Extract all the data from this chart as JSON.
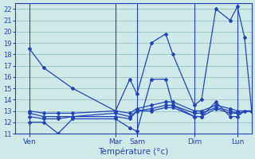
{
  "title": "Température (°c)",
  "background_color": "#cfe8e8",
  "grid_color": "#9ec8c8",
  "line_color": "#2244bb",
  "xlim": [
    0,
    33
  ],
  "ylim": [
    11,
    22.5
  ],
  "yticks": [
    11,
    12,
    13,
    14,
    15,
    16,
    17,
    18,
    19,
    20,
    21,
    22
  ],
  "x_tick_positions": [
    2,
    14,
    17,
    25,
    31
  ],
  "x_tick_labels": [
    "Ven",
    "Mar",
    "Sam",
    "Dim",
    "Lun"
  ],
  "x_vlines": [
    2,
    14,
    17,
    25,
    31
  ],
  "series": [
    {
      "x": [
        2,
        4,
        8,
        14,
        16,
        17,
        19,
        21,
        22,
        25,
        26,
        28,
        30,
        31,
        32,
        33
      ],
      "y": [
        18.5,
        16.8,
        15.0,
        13.0,
        15.8,
        14.5,
        19.0,
        19.8,
        18.0,
        13.5,
        14.0,
        22.0,
        21.0,
        22.2,
        19.5,
        13.0
      ]
    },
    {
      "x": [
        2,
        4,
        6,
        8,
        14,
        16,
        17,
        19,
        21,
        22,
        25,
        26,
        28,
        30,
        31,
        32,
        33
      ],
      "y": [
        12.0,
        12.0,
        11.0,
        12.3,
        12.3,
        11.5,
        11.2,
        15.8,
        15.8,
        13.5,
        12.5,
        12.5,
        13.8,
        12.5,
        12.5,
        13.0,
        13.0
      ]
    },
    {
      "x": [
        2,
        4,
        6,
        8,
        14,
        16,
        17,
        19,
        21,
        22,
        25,
        26,
        28,
        30,
        31,
        33
      ],
      "y": [
        12.5,
        12.3,
        12.3,
        12.5,
        12.5,
        12.3,
        13.0,
        13.0,
        13.3,
        13.3,
        12.5,
        12.5,
        13.2,
        12.8,
        12.8,
        13.0
      ]
    },
    {
      "x": [
        2,
        4,
        6,
        8,
        14,
        16,
        17,
        19,
        21,
        22,
        25,
        26,
        28,
        30,
        31,
        33
      ],
      "y": [
        12.8,
        12.5,
        12.5,
        12.5,
        12.8,
        12.5,
        13.0,
        13.2,
        13.5,
        13.5,
        12.8,
        12.8,
        13.3,
        13.0,
        12.8,
        13.0
      ]
    },
    {
      "x": [
        2,
        4,
        6,
        8,
        14,
        16,
        17,
        19,
        21,
        22,
        25,
        26,
        28,
        30,
        31,
        33
      ],
      "y": [
        13.0,
        12.8,
        12.8,
        12.8,
        13.0,
        12.8,
        13.2,
        13.5,
        13.8,
        13.8,
        13.0,
        13.0,
        13.5,
        13.2,
        13.0,
        13.0
      ]
    }
  ]
}
